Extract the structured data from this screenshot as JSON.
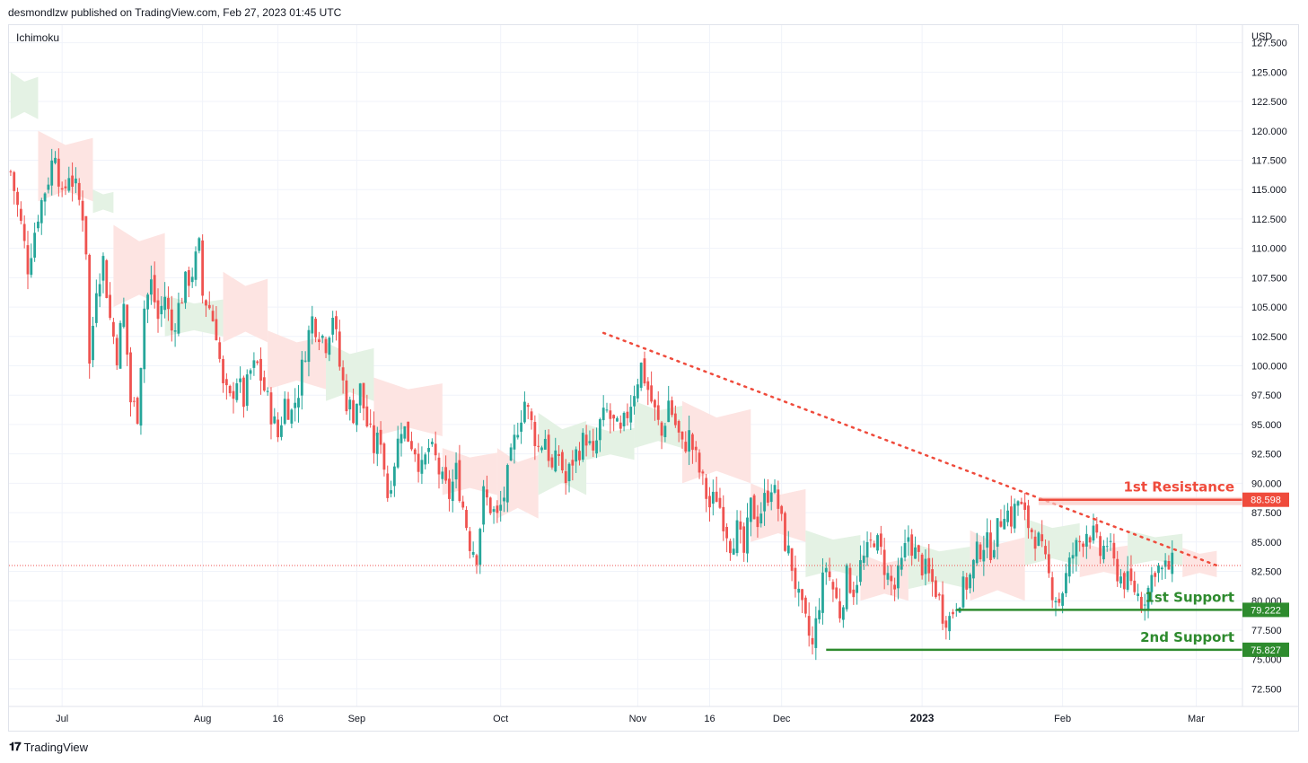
{
  "header": {
    "publisher_line": "desmondlzw published on TradingView.com, Feb 27, 2023 01:45 UTC"
  },
  "footer": {
    "brand": "TradingView",
    "logo_icon": "tradingview-logo-icon"
  },
  "colors": {
    "up": "#26a69a",
    "down": "#ef5350",
    "resistance": "#ef4b3c",
    "support": "#2e8b2e",
    "cloud_bull": "#e4f2e4",
    "cloud_bear": "#fde4e2",
    "trendline": "#ef4b3c"
  },
  "chart_data": {
    "type": "candlestick",
    "indicator": "Ichimoku",
    "currency": "USD",
    "ylim": [
      71,
      129
    ],
    "y_ticks": [
      "127.500",
      "125.000",
      "122.500",
      "120.000",
      "117.500",
      "115.000",
      "112.500",
      "110.000",
      "107.500",
      "105.000",
      "102.500",
      "100.000",
      "97.500",
      "95.000",
      "92.500",
      "90.000",
      "87.500",
      "85.000",
      "82.500",
      "80.000",
      "77.500",
      "75.000",
      "72.500"
    ],
    "x_labels": [
      {
        "label": "Jul",
        "index": 15,
        "bold": false
      },
      {
        "label": "Aug",
        "index": 56,
        "bold": false
      },
      {
        "label": "16",
        "index": 78,
        "bold": false
      },
      {
        "label": "Sep",
        "index": 101,
        "bold": false
      },
      {
        "label": "Oct",
        "index": 143,
        "bold": false
      },
      {
        "label": "Nov",
        "index": 183,
        "bold": false
      },
      {
        "label": "16",
        "index": 204,
        "bold": false
      },
      {
        "label": "Dec",
        "index": 225,
        "bold": false
      },
      {
        "label": "2023",
        "index": 266,
        "bold": true
      },
      {
        "label": "Feb",
        "index": 307,
        "bold": false
      },
      {
        "label": "Mar",
        "index": 346,
        "bold": false
      }
    ],
    "n_bars": 340,
    "n_slots": 360,
    "close_path": [
      [
        0,
        116.5
      ],
      [
        3,
        112
      ],
      [
        5,
        108.5
      ],
      [
        8,
        113
      ],
      [
        11,
        116
      ],
      [
        13,
        118.5
      ],
      [
        15,
        114
      ],
      [
        17,
        116.5
      ],
      [
        19,
        115
      ],
      [
        21,
        113
      ],
      [
        22,
        110
      ],
      [
        23,
        100
      ],
      [
        25,
        107
      ],
      [
        27,
        109
      ],
      [
        29,
        104
      ],
      [
        31,
        101
      ],
      [
        33,
        105
      ],
      [
        35,
        97
      ],
      [
        37,
        96
      ],
      [
        39,
        105
      ],
      [
        41,
        107
      ],
      [
        43,
        104
      ],
      [
        45,
        106
      ],
      [
        47,
        103
      ],
      [
        49,
        105
      ],
      [
        51,
        107
      ],
      [
        53,
        108
      ],
      [
        55,
        110
      ],
      [
        56,
        106
      ],
      [
        58,
        105
      ],
      [
        60,
        103
      ],
      [
        62,
        98
      ],
      [
        64,
        97
      ],
      [
        66,
        99
      ],
      [
        68,
        97
      ],
      [
        70,
        99.5
      ],
      [
        72,
        100
      ],
      [
        74,
        98
      ],
      [
        76,
        96
      ],
      [
        78,
        94
      ],
      [
        80,
        97
      ],
      [
        82,
        96
      ],
      [
        84,
        98
      ],
      [
        86,
        101.5
      ],
      [
        88,
        104
      ],
      [
        90,
        103
      ],
      [
        92,
        102
      ],
      [
        94,
        104.5
      ],
      [
        96,
        100
      ],
      [
        98,
        97
      ],
      [
        100,
        96
      ],
      [
        102,
        98
      ],
      [
        104,
        95
      ],
      [
        106,
        93
      ],
      [
        108,
        94
      ],
      [
        110,
        89
      ],
      [
        112,
        92
      ],
      [
        114,
        95
      ],
      [
        116,
        94
      ],
      [
        118,
        93
      ],
      [
        120,
        91
      ],
      [
        122,
        93
      ],
      [
        124,
        92
      ],
      [
        126,
        90
      ],
      [
        128,
        89
      ],
      [
        130,
        91
      ],
      [
        132,
        88
      ],
      [
        134,
        85
      ],
      [
        136,
        84
      ],
      [
        138,
        89
      ],
      [
        140,
        88
      ],
      [
        142,
        87
      ],
      [
        144,
        89
      ],
      [
        146,
        92
      ],
      [
        148,
        95
      ],
      [
        150,
        97
      ],
      [
        152,
        95
      ],
      [
        154,
        93
      ],
      [
        156,
        94
      ],
      [
        158,
        91
      ],
      [
        160,
        92.5
      ],
      [
        162,
        90
      ],
      [
        164,
        92
      ],
      [
        166,
        93
      ],
      [
        168,
        94
      ],
      [
        170,
        92
      ],
      [
        172,
        95
      ],
      [
        174,
        96
      ],
      [
        176,
        95
      ],
      [
        178,
        94
      ],
      [
        180,
        96
      ],
      [
        182,
        98
      ],
      [
        184,
        100
      ],
      [
        186,
        98
      ],
      [
        188,
        96
      ],
      [
        190,
        94
      ],
      [
        192,
        97
      ],
      [
        194,
        95
      ],
      [
        196,
        93
      ],
      [
        198,
        94
      ],
      [
        200,
        92
      ],
      [
        202,
        90
      ],
      [
        204,
        88
      ],
      [
        206,
        89
      ],
      [
        208,
        87
      ],
      [
        210,
        85
      ],
      [
        212,
        86
      ],
      [
        214,
        84
      ],
      [
        216,
        88
      ],
      [
        218,
        87
      ],
      [
        220,
        88.5
      ],
      [
        222,
        90
      ],
      [
        224,
        88
      ],
      [
        226,
        85
      ],
      [
        228,
        83
      ],
      [
        230,
        80
      ],
      [
        232,
        78
      ],
      [
        234,
        76
      ],
      [
        236,
        80
      ],
      [
        238,
        83
      ],
      [
        240,
        81
      ],
      [
        242,
        79
      ],
      [
        244,
        82
      ],
      [
        246,
        81
      ],
      [
        248,
        83
      ],
      [
        250,
        84
      ],
      [
        252,
        85.5
      ],
      [
        254,
        84
      ],
      [
        256,
        82
      ],
      [
        258,
        81
      ],
      [
        260,
        83
      ],
      [
        262,
        85.5
      ],
      [
        264,
        84
      ],
      [
        266,
        83
      ],
      [
        268,
        82
      ],
      [
        270,
        81
      ],
      [
        272,
        79
      ],
      [
        274,
        78.5
      ],
      [
        276,
        80
      ],
      [
        278,
        81
      ],
      [
        280,
        82
      ],
      [
        282,
        84
      ],
      [
        284,
        85
      ],
      [
        286,
        84.5
      ],
      [
        288,
        86
      ],
      [
        290,
        88
      ],
      [
        292,
        87
      ],
      [
        294,
        88.5
      ],
      [
        296,
        87
      ],
      [
        298,
        86
      ],
      [
        300,
        85
      ],
      [
        302,
        83
      ],
      [
        304,
        81
      ],
      [
        306,
        80
      ],
      [
        308,
        82
      ],
      [
        310,
        84
      ],
      [
        312,
        85
      ],
      [
        314,
        86
      ],
      [
        316,
        85.5
      ],
      [
        318,
        84
      ],
      [
        320,
        85
      ],
      [
        322,
        83
      ],
      [
        324,
        82
      ],
      [
        326,
        81.5
      ],
      [
        328,
        81
      ],
      [
        330,
        80
      ],
      [
        332,
        81
      ],
      [
        334,
        83
      ],
      [
        336,
        82.5
      ],
      [
        339,
        83
      ]
    ],
    "ichimoku_cloud": [
      {
        "from": 0,
        "to": 8,
        "upper": 125,
        "lower": 121,
        "sentiment": "bull"
      },
      {
        "from": 8,
        "to": 24,
        "upper": 120,
        "lower": 114,
        "sentiment": "bear"
      },
      {
        "from": 24,
        "to": 30,
        "upper": 115,
        "lower": 113,
        "sentiment": "bull"
      },
      {
        "from": 30,
        "to": 45,
        "upper": 112,
        "lower": 105,
        "sentiment": "bear"
      },
      {
        "from": 45,
        "to": 62,
        "upper": 106,
        "lower": 102.5,
        "sentiment": "bull"
      },
      {
        "from": 62,
        "to": 75,
        "upper": 108,
        "lower": 102,
        "sentiment": "bear"
      },
      {
        "from": 75,
        "to": 92,
        "upper": 103,
        "lower": 98,
        "sentiment": "bear"
      },
      {
        "from": 92,
        "to": 106,
        "upper": 102,
        "lower": 97,
        "sentiment": "bull"
      },
      {
        "from": 106,
        "to": 126,
        "upper": 99,
        "lower": 94,
        "sentiment": "bear"
      },
      {
        "from": 126,
        "to": 142,
        "upper": 93,
        "lower": 89,
        "sentiment": "bear"
      },
      {
        "from": 142,
        "to": 154,
        "upper": 93,
        "lower": 87,
        "sentiment": "bear"
      },
      {
        "from": 154,
        "to": 168,
        "upper": 96,
        "lower": 89,
        "sentiment": "bull"
      },
      {
        "from": 168,
        "to": 182,
        "upper": 95,
        "lower": 92,
        "sentiment": "bull"
      },
      {
        "from": 182,
        "to": 196,
        "upper": 97,
        "lower": 93,
        "sentiment": "bull"
      },
      {
        "from": 196,
        "to": 216,
        "upper": 97,
        "lower": 90,
        "sentiment": "bear"
      },
      {
        "from": 216,
        "to": 232,
        "upper": 90,
        "lower": 85,
        "sentiment": "bear"
      },
      {
        "from": 232,
        "to": 248,
        "upper": 86,
        "lower": 82,
        "sentiment": "bull"
      },
      {
        "from": 248,
        "to": 262,
        "upper": 84,
        "lower": 80,
        "sentiment": "bear"
      },
      {
        "from": 262,
        "to": 280,
        "upper": 85,
        "lower": 81,
        "sentiment": "bull"
      },
      {
        "from": 280,
        "to": 296,
        "upper": 86,
        "lower": 80,
        "sentiment": "bear"
      },
      {
        "from": 296,
        "to": 312,
        "upper": 87,
        "lower": 83,
        "sentiment": "bull"
      },
      {
        "from": 312,
        "to": 326,
        "upper": 85,
        "lower": 82,
        "sentiment": "bear"
      },
      {
        "from": 326,
        "to": 342,
        "upper": 86,
        "lower": 83,
        "sentiment": "bull"
      },
      {
        "from": 342,
        "to": 352,
        "upper": 84.5,
        "lower": 82,
        "sentiment": "bear"
      }
    ],
    "current_price": 83,
    "trendline": {
      "from_index": 173,
      "from_value": 102.8,
      "to_index": 352,
      "to_value": 83
    },
    "levels": [
      {
        "label": "1st Resistance",
        "value": 88.598,
        "tag": "88.598",
        "from_index": 300,
        "kind": "resistance"
      },
      {
        "label": "1st Support",
        "value": 79.222,
        "tag": "79.222",
        "from_index": 276,
        "kind": "support"
      },
      {
        "label": "2nd Support",
        "value": 75.827,
        "tag": "75.827",
        "from_index": 238,
        "kind": "support"
      }
    ],
    "legend": "Ichimoku"
  }
}
